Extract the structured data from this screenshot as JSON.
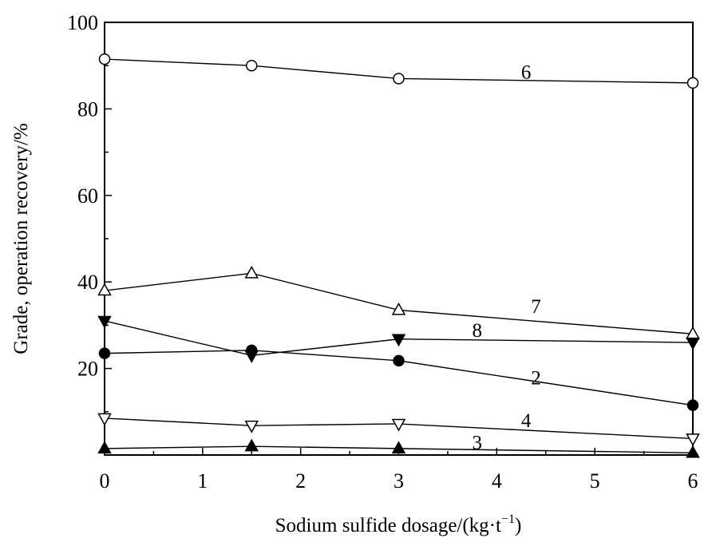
{
  "chart_data": {
    "type": "line",
    "xlabel": "Sodium sulfide dosage/(kg·t",
    "xlabel_sup": "−1",
    "xlabel_end": ")",
    "ylabel": "Grade, operation recovery/%",
    "xlim": [
      0,
      6
    ],
    "ylim": [
      0,
      100
    ],
    "x_ticks": [
      "0",
      "1",
      "2",
      "3",
      "4",
      "5",
      "6"
    ],
    "y_ticks": [
      "20",
      "40",
      "60",
      "80",
      "100"
    ],
    "grid": false,
    "x": [
      0,
      1.5,
      3,
      6
    ],
    "series": [
      {
        "name": "6",
        "marker": "circle-open",
        "values": [
          91.5,
          90,
          87,
          86
        ]
      },
      {
        "name": "7",
        "marker": "triangle-up-open",
        "values": [
          38,
          42,
          33.5,
          28
        ]
      },
      {
        "name": "8",
        "marker": "triangle-down-filled",
        "values": [
          31,
          23,
          26.8,
          26
        ]
      },
      {
        "name": "2",
        "marker": "circle-filled",
        "values": [
          23.5,
          24.2,
          21.8,
          11.5
        ]
      },
      {
        "name": "4",
        "marker": "triangle-down-open",
        "values": [
          8.5,
          6.8,
          7.2,
          3.8
        ]
      },
      {
        "name": "3",
        "marker": "triangle-up-filled",
        "values": [
          1.5,
          2,
          1.5,
          0.5
        ]
      }
    ],
    "series_label_positions": [
      {
        "name": "6",
        "x": 4.3,
        "y": 88.5
      },
      {
        "name": "7",
        "x": 4.4,
        "y": 34.3
      },
      {
        "name": "8",
        "x": 3.8,
        "y": 28.8
      },
      {
        "name": "2",
        "x": 4.4,
        "y": 17.8
      },
      {
        "name": "4",
        "x": 4.3,
        "y": 7.9
      },
      {
        "name": "3",
        "x": 3.8,
        "y": 2.9
      }
    ]
  }
}
